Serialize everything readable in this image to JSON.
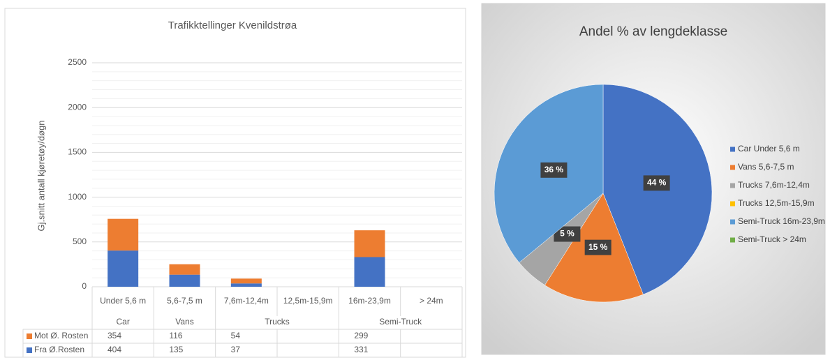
{
  "chart_data": [
    {
      "type": "bar",
      "stacked": true,
      "title": "Trafikktellinger Kvenildstrøa",
      "y_label": "Gj.snitt antall kjøretøy/døgn",
      "categories": [
        "Under 5,6 m",
        "5,6-7,5 m",
        "7,6m-12,4m",
        "12,5m-15,9m",
        "16m-23,9m",
        "> 24m"
      ],
      "groups": [
        {
          "label": "Car",
          "span": 1
        },
        {
          "label": "Vans",
          "span": 1
        },
        {
          "label": "Trucks",
          "span": 2
        },
        {
          "label": "Semi-Truck",
          "span": 2
        }
      ],
      "series": [
        {
          "name": "Fra Ø.Rosten",
          "color": "#4472c4",
          "values": [
            404,
            135,
            37,
            null,
            331,
            null
          ]
        },
        {
          "name": "Mot Ø. Rosten",
          "color": "#ed7d31",
          "values": [
            354,
            116,
            54,
            null,
            299,
            null
          ]
        }
      ],
      "ylim": [
        0,
        2500
      ],
      "yticks": [
        0,
        500,
        1000,
        1500,
        2000,
        2500
      ],
      "minor_yticks": [
        100,
        200,
        300,
        400,
        600,
        700,
        800,
        900,
        1100,
        1200,
        1300,
        1400,
        1600,
        1700,
        1800,
        1900,
        2100,
        2200,
        2300,
        2400
      ],
      "grid": true,
      "legend": "data-table"
    },
    {
      "type": "pie",
      "title": "Andel % av lengdeklasse",
      "categories": [
        "Car Under 5,6 m",
        "Vans 5,6-7,5 m",
        "Trucks 7,6m-12,4m",
        "Trucks 12,5m-15,9m",
        "Semi-Truck 16m-23,9m",
        "Semi-Truck > 24m"
      ],
      "values": [
        44,
        15,
        5,
        0,
        36,
        0
      ],
      "value_labels": [
        "44 %",
        "15 %",
        "5 %",
        null,
        "36 %",
        null
      ],
      "colors": [
        "#4472c4",
        "#ed7d31",
        "#a5a5a5",
        "#ffc000",
        "#5b9bd5",
        "#70ad47"
      ],
      "legend": "right"
    }
  ]
}
